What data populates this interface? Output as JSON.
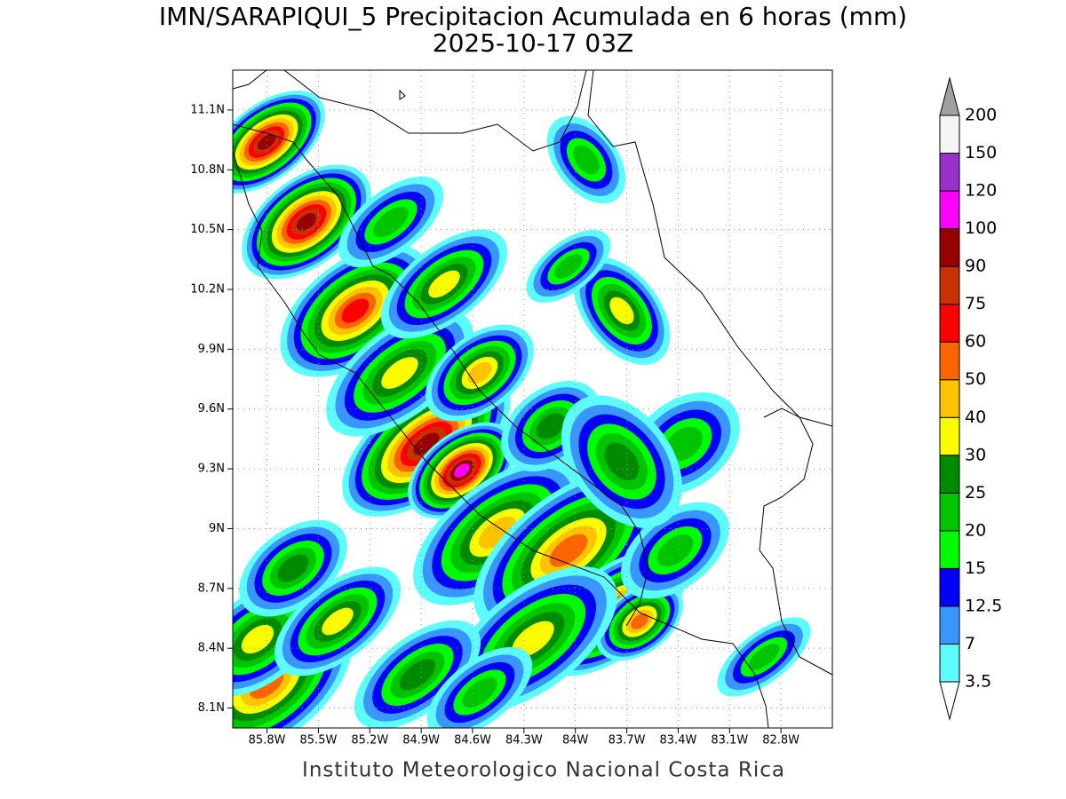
{
  "header": {
    "title": "IMN/SARAPIQUI_5 Precipitacion Acumulada en 6 horas (mm)",
    "subtitle": "2025-10-17 03Z"
  },
  "map": {
    "xlim": [
      -86.0,
      -82.5
    ],
    "ylim": [
      8.0,
      11.3
    ],
    "grid": true,
    "lat_ticks": [
      {
        "value": 11.1,
        "label": "11.1N"
      },
      {
        "value": 10.8,
        "label": "10.8N"
      },
      {
        "value": 10.5,
        "label": "10.5N"
      },
      {
        "value": 10.2,
        "label": "10.2N"
      },
      {
        "value": 9.9,
        "label": "9.9N"
      },
      {
        "value": 9.6,
        "label": "9.6N"
      },
      {
        "value": 9.3,
        "label": "9.3N"
      },
      {
        "value": 9.0,
        "label": "9N"
      },
      {
        "value": 8.7,
        "label": "8.7N"
      },
      {
        "value": 8.4,
        "label": "8.4N"
      },
      {
        "value": 8.1,
        "label": "8.1N"
      }
    ],
    "lon_ticks": [
      {
        "value": -85.8,
        "label": "85.8W"
      },
      {
        "value": -85.5,
        "label": "85.5W"
      },
      {
        "value": -85.2,
        "label": "85.2W"
      },
      {
        "value": -84.9,
        "label": "84.9W"
      },
      {
        "value": -84.6,
        "label": "84.6W"
      },
      {
        "value": -84.3,
        "label": "84.3W"
      },
      {
        "value": -84.0,
        "label": "84W"
      },
      {
        "value": -83.7,
        "label": "83.7W"
      },
      {
        "value": -83.4,
        "label": "83.4W"
      },
      {
        "value": -83.1,
        "label": "83.1W"
      },
      {
        "value": -82.8,
        "label": "82.8W"
      }
    ]
  },
  "colorbar": {
    "levels": [
      3.5,
      7,
      12.5,
      15,
      20,
      25,
      30,
      40,
      50,
      60,
      75,
      90,
      100,
      120,
      150,
      200
    ],
    "colors": [
      "#5cfcfc",
      "#3896fc",
      "#0000fc",
      "#00fc00",
      "#00c400",
      "#008a00",
      "#fcfc00",
      "#fcc400",
      "#fc6400",
      "#fc0000",
      "#c83200",
      "#960000",
      "#fc00fc",
      "#9632c8",
      "#f4f4f4"
    ],
    "under_color": "#ffffff",
    "over_color": "#a0a0a0"
  },
  "footer": "Instituto Meteorologico Nacional Costa Rica"
}
